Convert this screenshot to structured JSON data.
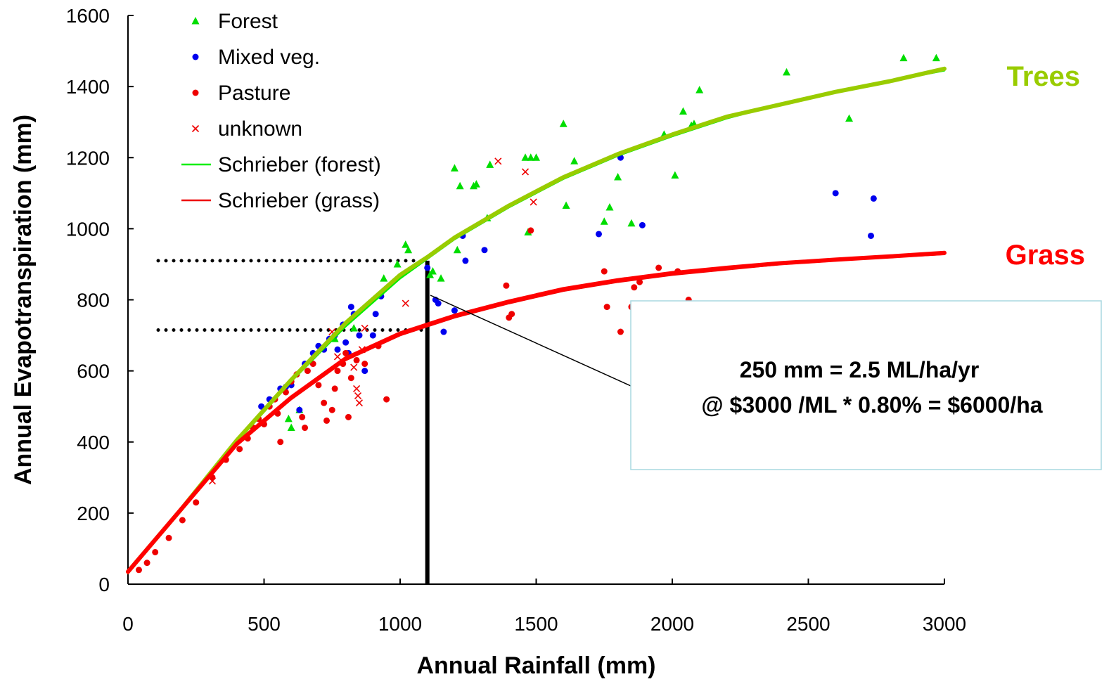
{
  "chart_data": {
    "type": "scatter",
    "xlabel": "Annual Rainfall (mm)",
    "ylabel": "Annual Evapotranspiration (mm)",
    "xlim": [
      0,
      3000
    ],
    "ylim": [
      0,
      1600
    ],
    "xticks": [
      0,
      500,
      1000,
      1500,
      2000,
      2500,
      3000
    ],
    "yticks": [
      0,
      200,
      400,
      600,
      800,
      1000,
      1200,
      1400,
      1600
    ],
    "grid": false,
    "legend_position": "top-left",
    "series": [
      {
        "name": "Forest",
        "kind": "scatter",
        "marker": "triangle",
        "color": "#00dd00",
        "points": [
          [
            590,
            465
          ],
          [
            600,
            440
          ],
          [
            630,
            490
          ],
          [
            760,
            690
          ],
          [
            830,
            720
          ],
          [
            940,
            860
          ],
          [
            990,
            900
          ],
          [
            1020,
            955
          ],
          [
            1030,
            940
          ],
          [
            1110,
            870
          ],
          [
            1120,
            880
          ],
          [
            1150,
            860
          ],
          [
            1200,
            1170
          ],
          [
            1210,
            940
          ],
          [
            1220,
            1120
          ],
          [
            1270,
            1120
          ],
          [
            1280,
            1125
          ],
          [
            1320,
            1030
          ],
          [
            1330,
            1180
          ],
          [
            1460,
            1200
          ],
          [
            1480,
            1200
          ],
          [
            1500,
            1200
          ],
          [
            1470,
            990
          ],
          [
            1600,
            1295
          ],
          [
            1610,
            1065
          ],
          [
            1640,
            1190
          ],
          [
            1750,
            1020
          ],
          [
            1770,
            1060
          ],
          [
            1800,
            1145
          ],
          [
            1850,
            1015
          ],
          [
            1970,
            1265
          ],
          [
            2010,
            1150
          ],
          [
            2040,
            1330
          ],
          [
            2070,
            1290
          ],
          [
            2080,
            1295
          ],
          [
            2100,
            1390
          ],
          [
            2420,
            1440
          ],
          [
            2650,
            1310
          ],
          [
            2850,
            1480
          ],
          [
            2970,
            1480
          ]
        ]
      },
      {
        "name": "Mixed veg.",
        "kind": "scatter",
        "marker": "circle",
        "color": "#0000ee",
        "points": [
          [
            490,
            500
          ],
          [
            520,
            520
          ],
          [
            560,
            550
          ],
          [
            580,
            555
          ],
          [
            600,
            560
          ],
          [
            630,
            490
          ],
          [
            650,
            620
          ],
          [
            680,
            650
          ],
          [
            700,
            670
          ],
          [
            720,
            660
          ],
          [
            740,
            690
          ],
          [
            760,
            700
          ],
          [
            770,
            660
          ],
          [
            790,
            730
          ],
          [
            800,
            680
          ],
          [
            810,
            650
          ],
          [
            820,
            780
          ],
          [
            830,
            760
          ],
          [
            850,
            700
          ],
          [
            870,
            600
          ],
          [
            900,
            700
          ],
          [
            910,
            760
          ],
          [
            930,
            810
          ],
          [
            1100,
            890
          ],
          [
            1130,
            800
          ],
          [
            1140,
            790
          ],
          [
            1160,
            710
          ],
          [
            1200,
            770
          ],
          [
            1230,
            980
          ],
          [
            1240,
            910
          ],
          [
            1310,
            940
          ],
          [
            1730,
            985
          ],
          [
            1810,
            1200
          ],
          [
            1890,
            1010
          ],
          [
            2600,
            1100
          ],
          [
            2730,
            980
          ],
          [
            2740,
            1085
          ]
        ]
      },
      {
        "name": "Pasture",
        "kind": "scatter",
        "marker": "circle",
        "color": "#ee0000",
        "points": [
          [
            40,
            40
          ],
          [
            70,
            60
          ],
          [
            100,
            90
          ],
          [
            150,
            130
          ],
          [
            200,
            180
          ],
          [
            250,
            230
          ],
          [
            310,
            300
          ],
          [
            360,
            350
          ],
          [
            410,
            380
          ],
          [
            440,
            410
          ],
          [
            460,
            440
          ],
          [
            480,
            465
          ],
          [
            500,
            450
          ],
          [
            520,
            500
          ],
          [
            540,
            520
          ],
          [
            550,
            480
          ],
          [
            560,
            400
          ],
          [
            580,
            540
          ],
          [
            600,
            570
          ],
          [
            620,
            590
          ],
          [
            640,
            470
          ],
          [
            650,
            440
          ],
          [
            660,
            600
          ],
          [
            680,
            620
          ],
          [
            700,
            560
          ],
          [
            720,
            510
          ],
          [
            730,
            460
          ],
          [
            750,
            490
          ],
          [
            760,
            550
          ],
          [
            770,
            600
          ],
          [
            790,
            620
          ],
          [
            800,
            650
          ],
          [
            810,
            470
          ],
          [
            820,
            580
          ],
          [
            840,
            630
          ],
          [
            870,
            620
          ],
          [
            920,
            670
          ],
          [
            950,
            520
          ],
          [
            1390,
            840
          ],
          [
            1400,
            750
          ],
          [
            1410,
            760
          ],
          [
            1480,
            995
          ],
          [
            1750,
            880
          ],
          [
            1760,
            780
          ],
          [
            1810,
            710
          ],
          [
            1850,
            780
          ],
          [
            1860,
            835
          ],
          [
            1880,
            850
          ],
          [
            1950,
            890
          ],
          [
            2000,
            780
          ],
          [
            2020,
            880
          ],
          [
            2060,
            800
          ]
        ]
      },
      {
        "name": "unknown",
        "kind": "scatter",
        "marker": "x",
        "color": "#ee0000",
        "points": [
          [
            310,
            290
          ],
          [
            750,
            710
          ],
          [
            770,
            640
          ],
          [
            830,
            610
          ],
          [
            840,
            550
          ],
          [
            845,
            530
          ],
          [
            850,
            510
          ],
          [
            860,
            660
          ],
          [
            870,
            720
          ],
          [
            1020,
            790
          ],
          [
            1360,
            1190
          ],
          [
            1460,
            1160
          ],
          [
            1490,
            1075
          ]
        ]
      },
      {
        "name": "Schrieber (forest)",
        "kind": "line",
        "color": "#00ee00",
        "points": [
          [
            0,
            30
          ],
          [
            200,
            210
          ],
          [
            400,
            400
          ],
          [
            600,
            570
          ],
          [
            800,
            725
          ],
          [
            1000,
            860
          ],
          [
            1200,
            970
          ],
          [
            1400,
            1060
          ],
          [
            1600,
            1140
          ],
          [
            1800,
            1205
          ],
          [
            2000,
            1260
          ],
          [
            2200,
            1310
          ],
          [
            2400,
            1350
          ],
          [
            2600,
            1385
          ],
          [
            2800,
            1415
          ],
          [
            3000,
            1445
          ]
        ]
      },
      {
        "name": "Schrieber (grass)",
        "kind": "line",
        "color": "#ee0000",
        "points": [
          [
            0,
            30
          ],
          [
            200,
            210
          ],
          [
            400,
            390
          ],
          [
            600,
            520
          ],
          [
            800,
            630
          ],
          [
            1000,
            700
          ],
          [
            1200,
            750
          ],
          [
            1400,
            790
          ],
          [
            1600,
            825
          ],
          [
            1800,
            850
          ],
          [
            2000,
            870
          ],
          [
            2200,
            885
          ],
          [
            2400,
            900
          ],
          [
            2600,
            910
          ],
          [
            2800,
            920
          ],
          [
            3000,
            928
          ]
        ]
      },
      {
        "kind": "line",
        "color": "#99cc00",
        "points": [
          [
            0,
            35
          ],
          [
            200,
            215
          ],
          [
            400,
            405
          ],
          [
            600,
            575
          ],
          [
            800,
            735
          ],
          [
            1000,
            870
          ],
          [
            1100,
            920
          ],
          [
            1200,
            975
          ],
          [
            1400,
            1065
          ],
          [
            1600,
            1145
          ],
          [
            1800,
            1210
          ],
          [
            2000,
            1265
          ],
          [
            2200,
            1315
          ],
          [
            2400,
            1350
          ],
          [
            2600,
            1385
          ],
          [
            2800,
            1415
          ],
          [
            3000,
            1450
          ]
        ]
      },
      {
        "kind": "line",
        "color": "#ff0000",
        "points": [
          [
            0,
            35
          ],
          [
            200,
            215
          ],
          [
            400,
            395
          ],
          [
            600,
            525
          ],
          [
            800,
            635
          ],
          [
            1000,
            705
          ],
          [
            1200,
            755
          ],
          [
            1400,
            795
          ],
          [
            1600,
            830
          ],
          [
            1800,
            855
          ],
          [
            2000,
            875
          ],
          [
            2200,
            890
          ],
          [
            2400,
            903
          ],
          [
            2600,
            913
          ],
          [
            2800,
            922
          ],
          [
            3000,
            932
          ]
        ]
      }
    ],
    "reference_lines": [
      {
        "style": "dotted",
        "x": [
          0,
          1100
        ],
        "y": 910
      },
      {
        "style": "dotted",
        "x": [
          0,
          1100
        ],
        "y": 715
      },
      {
        "style": "solid",
        "x": 1100,
        "y": [
          0,
          910
        ]
      }
    ],
    "annotations": [
      {
        "text": "Trees",
        "color": "#99cc00"
      },
      {
        "text": "Grass",
        "color": "#ff0000"
      },
      {
        "lines": [
          "250 mm = 2.5 ML/ha/yr",
          "@ $3000 /ML * 0.80% = $6000/ha"
        ],
        "color": "#000000"
      }
    ]
  }
}
